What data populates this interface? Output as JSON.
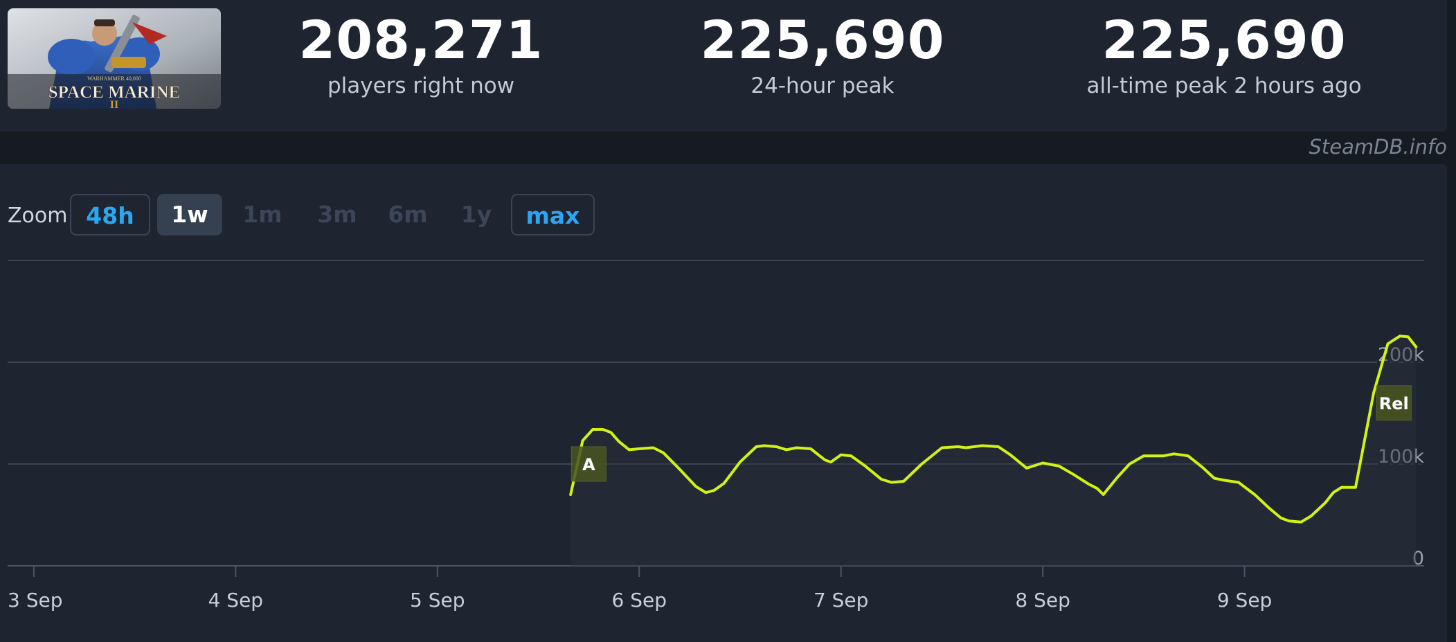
{
  "game": {
    "logo_small": "WARHAMMER 40,000",
    "logo_title": "SPACE MARINE",
    "logo_numeral": "II"
  },
  "stats": [
    {
      "value": "208,271",
      "label": "players right now"
    },
    {
      "value": "225,690",
      "label": "24-hour peak"
    },
    {
      "value": "225,690",
      "label": "all-time peak 2 hours ago"
    }
  ],
  "credit": "SteamDB.info",
  "zoom": {
    "label": "Zoom",
    "options": [
      {
        "label": "48h",
        "state": "active"
      },
      {
        "label": "1w",
        "state": "selected"
      },
      {
        "label": "1m",
        "state": "disabled"
      },
      {
        "label": "3m",
        "state": "disabled"
      },
      {
        "label": "6m",
        "state": "disabled"
      },
      {
        "label": "1y",
        "state": "disabled"
      },
      {
        "label": "max",
        "state": "active"
      }
    ]
  },
  "colors": {
    "line": "#d2f215",
    "grid": "#3c4553",
    "axis_text": "#c7cfd9",
    "y_text": "#9aa3ae",
    "flag_bg": "#49561f"
  },
  "chart_data": {
    "type": "line",
    "x_unit": "days since 3 Sep, 00:00",
    "x_tick_labels": [
      "3 Sep",
      "4 Sep",
      "5 Sep",
      "6 Sep",
      "7 Sep",
      "8 Sep",
      "9 Sep"
    ],
    "xlim": [
      -0.13,
      6.89
    ],
    "y_ticks": [
      {
        "value": 0,
        "label": "0"
      },
      {
        "value": 100000,
        "label": "100k"
      },
      {
        "value": 200000,
        "label": "200k"
      }
    ],
    "ylim": [
      0,
      300000
    ],
    "grid": true,
    "series": [
      {
        "points": [
          [
            2.66,
            70000
          ],
          [
            2.72,
            123000
          ],
          [
            2.77,
            134000
          ],
          [
            2.82,
            134000
          ],
          [
            2.86,
            131000
          ],
          [
            2.9,
            122000
          ],
          [
            2.95,
            114000
          ],
          [
            3.0,
            115000
          ],
          [
            3.07,
            116000
          ],
          [
            3.12,
            111000
          ],
          [
            3.2,
            95000
          ],
          [
            3.28,
            78000
          ],
          [
            3.33,
            72000
          ],
          [
            3.37,
            74000
          ],
          [
            3.42,
            81000
          ],
          [
            3.5,
            102000
          ],
          [
            3.58,
            117000
          ],
          [
            3.62,
            118000
          ],
          [
            3.68,
            117000
          ],
          [
            3.73,
            114000
          ],
          [
            3.78,
            116000
          ],
          [
            3.85,
            115000
          ],
          [
            3.92,
            104000
          ],
          [
            3.95,
            102000
          ],
          [
            4.0,
            109000
          ],
          [
            4.05,
            108000
          ],
          [
            4.12,
            98000
          ],
          [
            4.2,
            85000
          ],
          [
            4.25,
            82000
          ],
          [
            4.31,
            83000
          ],
          [
            4.4,
            100000
          ],
          [
            4.5,
            116000
          ],
          [
            4.58,
            117000
          ],
          [
            4.62,
            116000
          ],
          [
            4.7,
            118000
          ],
          [
            4.78,
            117000
          ],
          [
            4.84,
            109000
          ],
          [
            4.92,
            96000
          ],
          [
            5.0,
            101000
          ],
          [
            5.08,
            98000
          ],
          [
            5.15,
            90000
          ],
          [
            5.23,
            80000
          ],
          [
            5.27,
            76000
          ],
          [
            5.3,
            70000
          ],
          [
            5.37,
            87000
          ],
          [
            5.43,
            100000
          ],
          [
            5.5,
            108000
          ],
          [
            5.6,
            108000
          ],
          [
            5.65,
            110000
          ],
          [
            5.72,
            108000
          ],
          [
            5.79,
            97000
          ],
          [
            5.85,
            86000
          ],
          [
            5.9,
            84000
          ],
          [
            5.97,
            82000
          ],
          [
            6.05,
            70000
          ],
          [
            6.12,
            57000
          ],
          [
            6.18,
            47000
          ],
          [
            6.22,
            44000
          ],
          [
            6.28,
            43000
          ],
          [
            6.33,
            49000
          ],
          [
            6.4,
            62000
          ],
          [
            6.44,
            72000
          ],
          [
            6.48,
            77000
          ],
          [
            6.55,
            77000
          ],
          [
            6.64,
            170000
          ],
          [
            6.71,
            218000
          ],
          [
            6.77,
            225690
          ],
          [
            6.81,
            225000
          ],
          [
            6.85,
            215000
          ]
        ]
      }
    ],
    "annotations": [
      {
        "label": "A",
        "x": 2.75,
        "y": 100000
      },
      {
        "label": "Rel",
        "x": 6.74,
        "y": 160000
      }
    ]
  }
}
